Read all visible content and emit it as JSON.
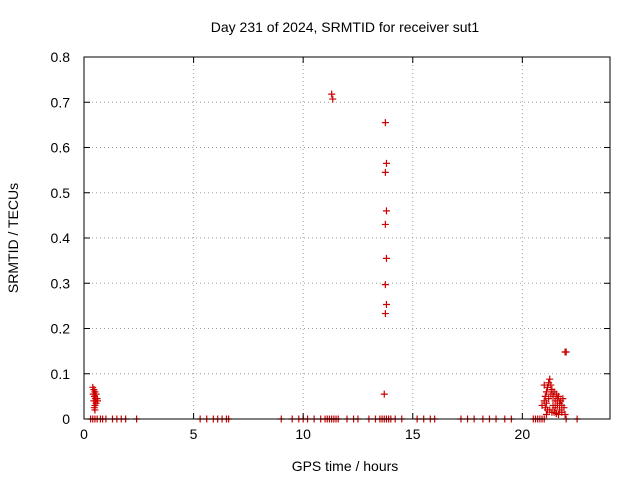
{
  "chart_data": {
    "type": "scatter",
    "title": "Day 231 of 2024, SRMTID for receiver sut1",
    "xlabel": "GPS time / hours",
    "ylabel": "SRMTID / TECUs",
    "xlim": [
      0,
      24
    ],
    "ylim": [
      0,
      0.8
    ],
    "xticks": [
      0,
      5,
      10,
      15,
      20
    ],
    "yticks": [
      0,
      0.1,
      0.2,
      0.3,
      0.4,
      0.5,
      0.6,
      0.7,
      0.8
    ],
    "xtick_labels": [
      "0",
      "5",
      "10",
      "15",
      "20"
    ],
    "ytick_labels": [
      "0",
      "0.1",
      "0.2",
      "0.3",
      "0.4",
      "0.5",
      "0.6",
      "0.7",
      "0.8"
    ],
    "grid": true,
    "marker": "+",
    "colors": {
      "series": "#cc0000",
      "axes": "#000000",
      "grid": "#a0a0a0"
    },
    "series": [
      {
        "name": "sut1",
        "points": [
          [
            0.4,
            0.07
          ],
          [
            0.45,
            0.065
          ],
          [
            0.5,
            0.06
          ],
          [
            0.42,
            0.055
          ],
          [
            0.48,
            0.05
          ],
          [
            0.52,
            0.045
          ],
          [
            0.45,
            0.04
          ],
          [
            0.55,
            0.035
          ],
          [
            0.5,
            0.03
          ],
          [
            0.47,
            0.025
          ],
          [
            0.6,
            0.045
          ],
          [
            0.55,
            0.055
          ],
          [
            0.62,
            0.04
          ],
          [
            0.5,
            0.02
          ],
          [
            0.3,
            0
          ],
          [
            0.4,
            0
          ],
          [
            0.5,
            0
          ],
          [
            0.6,
            0
          ],
          [
            0.75,
            0
          ],
          [
            0.85,
            0
          ],
          [
            1.0,
            0
          ],
          [
            1.3,
            0
          ],
          [
            1.5,
            0
          ],
          [
            1.7,
            0
          ],
          [
            1.9,
            0
          ],
          [
            2.4,
            0
          ],
          [
            5.3,
            0
          ],
          [
            5.6,
            0
          ],
          [
            5.9,
            0
          ],
          [
            6.1,
            0
          ],
          [
            6.3,
            0
          ],
          [
            6.5,
            0
          ],
          [
            6.6,
            0
          ],
          [
            9.0,
            0
          ],
          [
            9.5,
            0
          ],
          [
            9.8,
            0
          ],
          [
            10.0,
            0
          ],
          [
            10.2,
            0
          ],
          [
            10.5,
            0
          ],
          [
            10.8,
            0
          ],
          [
            11.0,
            0
          ],
          [
            11.1,
            0
          ],
          [
            11.2,
            0
          ],
          [
            11.3,
            0
          ],
          [
            11.4,
            0
          ],
          [
            11.5,
            0
          ],
          [
            11.6,
            0
          ],
          [
            12.0,
            0
          ],
          [
            12.3,
            0
          ],
          [
            12.5,
            0
          ],
          [
            13.0,
            0
          ],
          [
            13.3,
            0
          ],
          [
            13.5,
            0
          ],
          [
            13.6,
            0
          ],
          [
            13.7,
            0
          ],
          [
            13.8,
            0
          ],
          [
            13.9,
            0
          ],
          [
            14.0,
            0
          ],
          [
            14.2,
            0
          ],
          [
            14.5,
            0
          ],
          [
            15.2,
            0
          ],
          [
            15.5,
            0
          ],
          [
            15.8,
            0
          ],
          [
            16.0,
            0
          ],
          [
            17.2,
            0
          ],
          [
            17.5,
            0
          ],
          [
            17.8,
            0
          ],
          [
            18.2,
            0
          ],
          [
            18.5,
            0
          ],
          [
            18.8,
            0
          ],
          [
            19.2,
            0
          ],
          [
            19.5,
            0
          ],
          [
            20.5,
            0
          ],
          [
            20.6,
            0
          ],
          [
            20.7,
            0
          ],
          [
            20.8,
            0
          ],
          [
            20.9,
            0
          ],
          [
            21.0,
            0
          ],
          [
            22.0,
            0
          ],
          [
            22.5,
            0
          ],
          [
            11.3,
            0.718
          ],
          [
            11.35,
            0.707
          ],
          [
            13.75,
            0.655
          ],
          [
            13.8,
            0.565
          ],
          [
            13.75,
            0.545
          ],
          [
            13.8,
            0.46
          ],
          [
            13.75,
            0.43
          ],
          [
            13.8,
            0.355
          ],
          [
            13.75,
            0.297
          ],
          [
            13.8,
            0.253
          ],
          [
            13.75,
            0.233
          ],
          [
            13.7,
            0.055
          ],
          [
            20.9,
            0.03
          ],
          [
            21.0,
            0.04
          ],
          [
            21.05,
            0.05
          ],
          [
            21.1,
            0.06
          ],
          [
            21.1,
            0.035
          ],
          [
            21.15,
            0.07
          ],
          [
            21.2,
            0.08
          ],
          [
            21.2,
            0.045
          ],
          [
            21.25,
            0.088
          ],
          [
            21.3,
            0.075
          ],
          [
            21.3,
            0.055
          ],
          [
            21.35,
            0.065
          ],
          [
            21.4,
            0.05
          ],
          [
            21.4,
            0.03
          ],
          [
            21.45,
            0.06
          ],
          [
            21.5,
            0.04
          ],
          [
            21.5,
            0.025
          ],
          [
            21.55,
            0.055
          ],
          [
            21.6,
            0.045
          ],
          [
            21.6,
            0.03
          ],
          [
            21.65,
            0.05
          ],
          [
            21.7,
            0.035
          ],
          [
            21.7,
            0.02
          ],
          [
            21.75,
            0.04
          ],
          [
            21.8,
            0.03
          ],
          [
            21.8,
            0.015
          ],
          [
            21.85,
            0.045
          ],
          [
            21.9,
            0.025
          ],
          [
            21.95,
            0.01
          ],
          [
            21.0,
            0.075
          ],
          [
            21.05,
            0.025
          ],
          [
            21.15,
            0.02
          ],
          [
            21.25,
            0.02
          ],
          [
            21.35,
            0.015
          ],
          [
            21.45,
            0.015
          ],
          [
            21.55,
            0.012
          ],
          [
            21.65,
            0.01
          ],
          [
            21.1,
            0.01
          ],
          [
            21.95,
            0.148
          ],
          [
            22.0,
            0.148
          ]
        ]
      }
    ]
  }
}
